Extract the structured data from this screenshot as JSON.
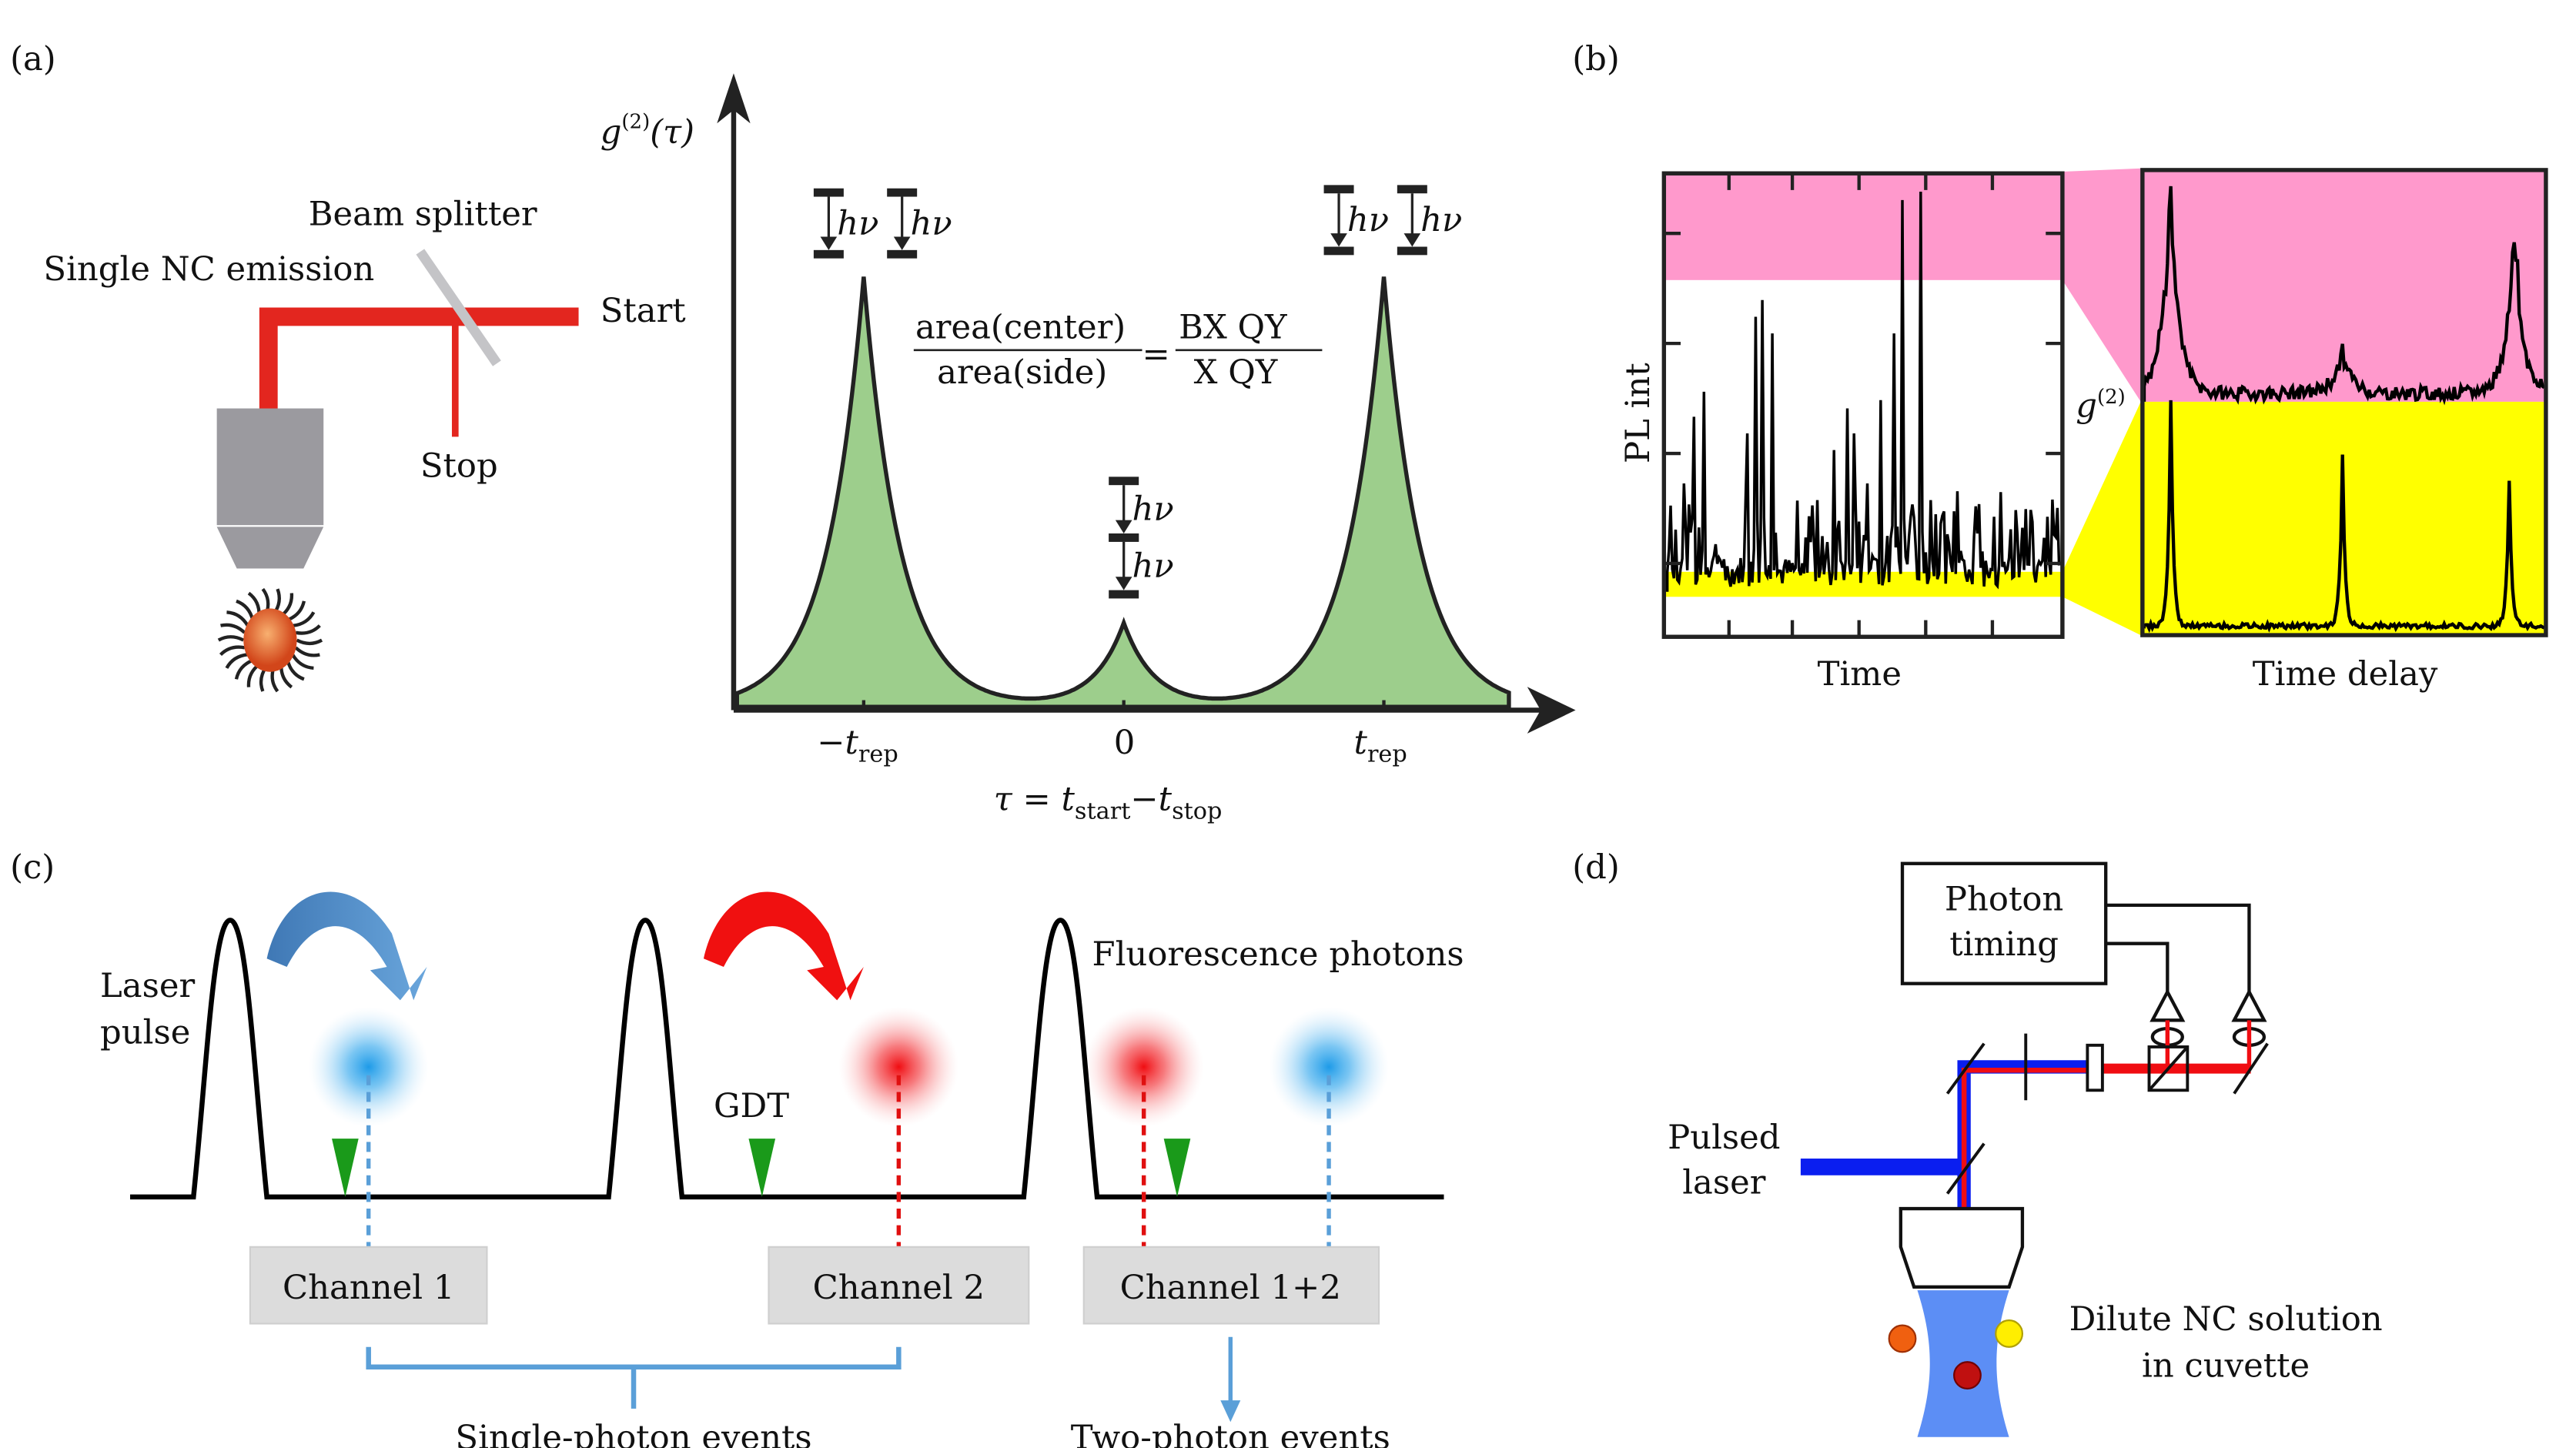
{
  "panel_a": {
    "label": "(a)",
    "beam_splitter": "Beam splitter",
    "emission": "Single NC emission",
    "start": "Start",
    "stop": "Stop",
    "y_axis": {
      "g": "g",
      "sup": "(2)",
      "arg": "(τ)"
    },
    "ticks": [
      {
        "main": "−t",
        "sub": "rep"
      },
      {
        "main": "0",
        "sub": ""
      },
      {
        "main": "t",
        "sub": "rep"
      }
    ],
    "x_axis": {
      "tau": "τ = t",
      "start_sub": "start",
      "minus": "−t",
      "stop_sub": "stop"
    },
    "formula": {
      "num_left": "area(center)",
      "den_left": "area(side)",
      "equals": "=",
      "num_right": "BX QY",
      "den_right": "X QY"
    },
    "photon": "hν",
    "colors": {
      "peak_fill": "#9dce8c",
      "beam": "#e3261f",
      "objective": "#9b9a9f"
    }
  },
  "panel_b": {
    "label": "(b)",
    "y_label": "PL int",
    "left_x_label": "Time",
    "right_x_label": "Time delay",
    "g2_label": {
      "g": "g",
      "sup": "(2)"
    },
    "colors": {
      "high": "#ff99cc",
      "low": "#ffff00"
    }
  },
  "panel_c": {
    "label": "(c)",
    "laser_pulse": [
      "Laser",
      "pulse"
    ],
    "fluorescence": "Fluorescence photons",
    "gdt": "GDT",
    "channels": [
      "Channel 1",
      "Channel 2",
      "Channel 1+2"
    ],
    "single_events": "Single-photon events",
    "two_events": "Two-photon events",
    "colors": {
      "blue": "#1e9be8",
      "red": "#f00d12",
      "green": "#1a9a1a"
    }
  },
  "panel_d": {
    "label": "(d)",
    "photon_timing": [
      "Photon",
      "timing"
    ],
    "pulsed_laser": [
      "Pulsed",
      "laser"
    ],
    "solution": [
      "Dilute NC solution",
      "in cuvette"
    ],
    "colors": {
      "laser": "#0a1ef0",
      "emission": "#f00d12",
      "cuvette": "#5c8ef5"
    }
  }
}
